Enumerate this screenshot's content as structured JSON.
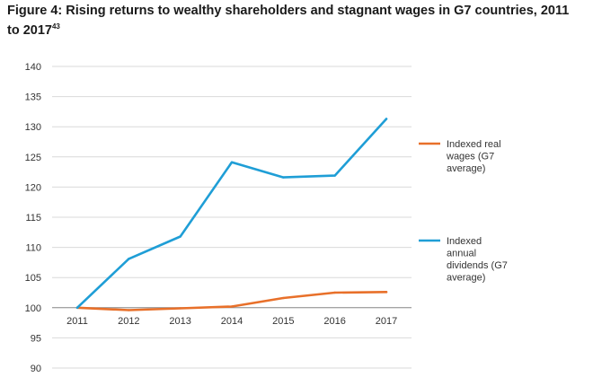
{
  "title": "Figure 4: Rising returns to wealthy shareholders and stagnant wages in G7 countries, 2011 to 2017",
  "title_ref": "43",
  "chart_data": {
    "type": "line",
    "x": [
      "2011",
      "2012",
      "2013",
      "2014",
      "2015",
      "2016",
      "2017"
    ],
    "series": [
      {
        "name": "Indexed real wages (G7 average)",
        "legend_lines": [
          "Indexed real",
          "wages (G7",
          "average)"
        ],
        "color": "#e8702a",
        "values": [
          100,
          99.6,
          99.9,
          100.2,
          101.6,
          102.5,
          102.6
        ]
      },
      {
        "name": "Indexed annual dividends (G7 average)",
        "legend_lines": [
          "Indexed",
          "annual",
          "dividends (G7",
          "average)"
        ],
        "color": "#1f9ed6",
        "values": [
          100,
          108.1,
          111.8,
          124.1,
          121.6,
          121.9,
          131.3
        ]
      }
    ],
    "y_ticks": [
      140,
      135,
      130,
      125,
      120,
      115,
      110,
      105,
      100,
      95,
      90
    ],
    "ylim": [
      90,
      140
    ],
    "x_axis_at": 100,
    "grid": true,
    "legend": "right"
  }
}
